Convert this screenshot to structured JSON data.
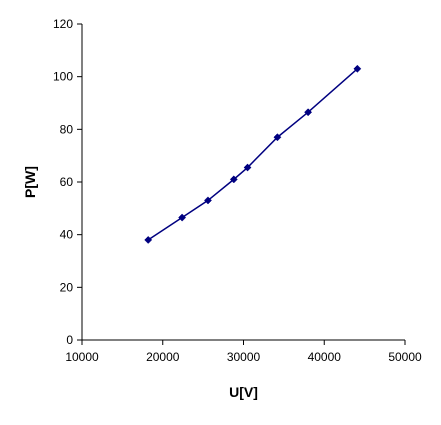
{
  "chart_data": {
    "type": "line",
    "title": "",
    "xlabel": "U[V]",
    "ylabel": "P[W]",
    "xlim": [
      10000,
      50000
    ],
    "ylim": [
      0,
      120
    ],
    "x_ticks": [
      10000,
      20000,
      30000,
      40000,
      50000
    ],
    "y_ticks": [
      0,
      20,
      40,
      60,
      80,
      100,
      120
    ],
    "x_tick_labels": [
      "10000",
      "20000",
      "30000",
      "40000",
      "50000"
    ],
    "y_tick_labels": [
      "0",
      "20",
      "40",
      "60",
      "80",
      "100",
      "120"
    ],
    "grid": false,
    "legend": "none",
    "series": [
      {
        "color": "#000080",
        "marker": "diamond",
        "x": [
          18200,
          22400,
          25600,
          28800,
          30500,
          34200,
          38000,
          44100
        ],
        "y": [
          38,
          46.5,
          53,
          61,
          65.5,
          77,
          86.5,
          103
        ]
      }
    ]
  }
}
